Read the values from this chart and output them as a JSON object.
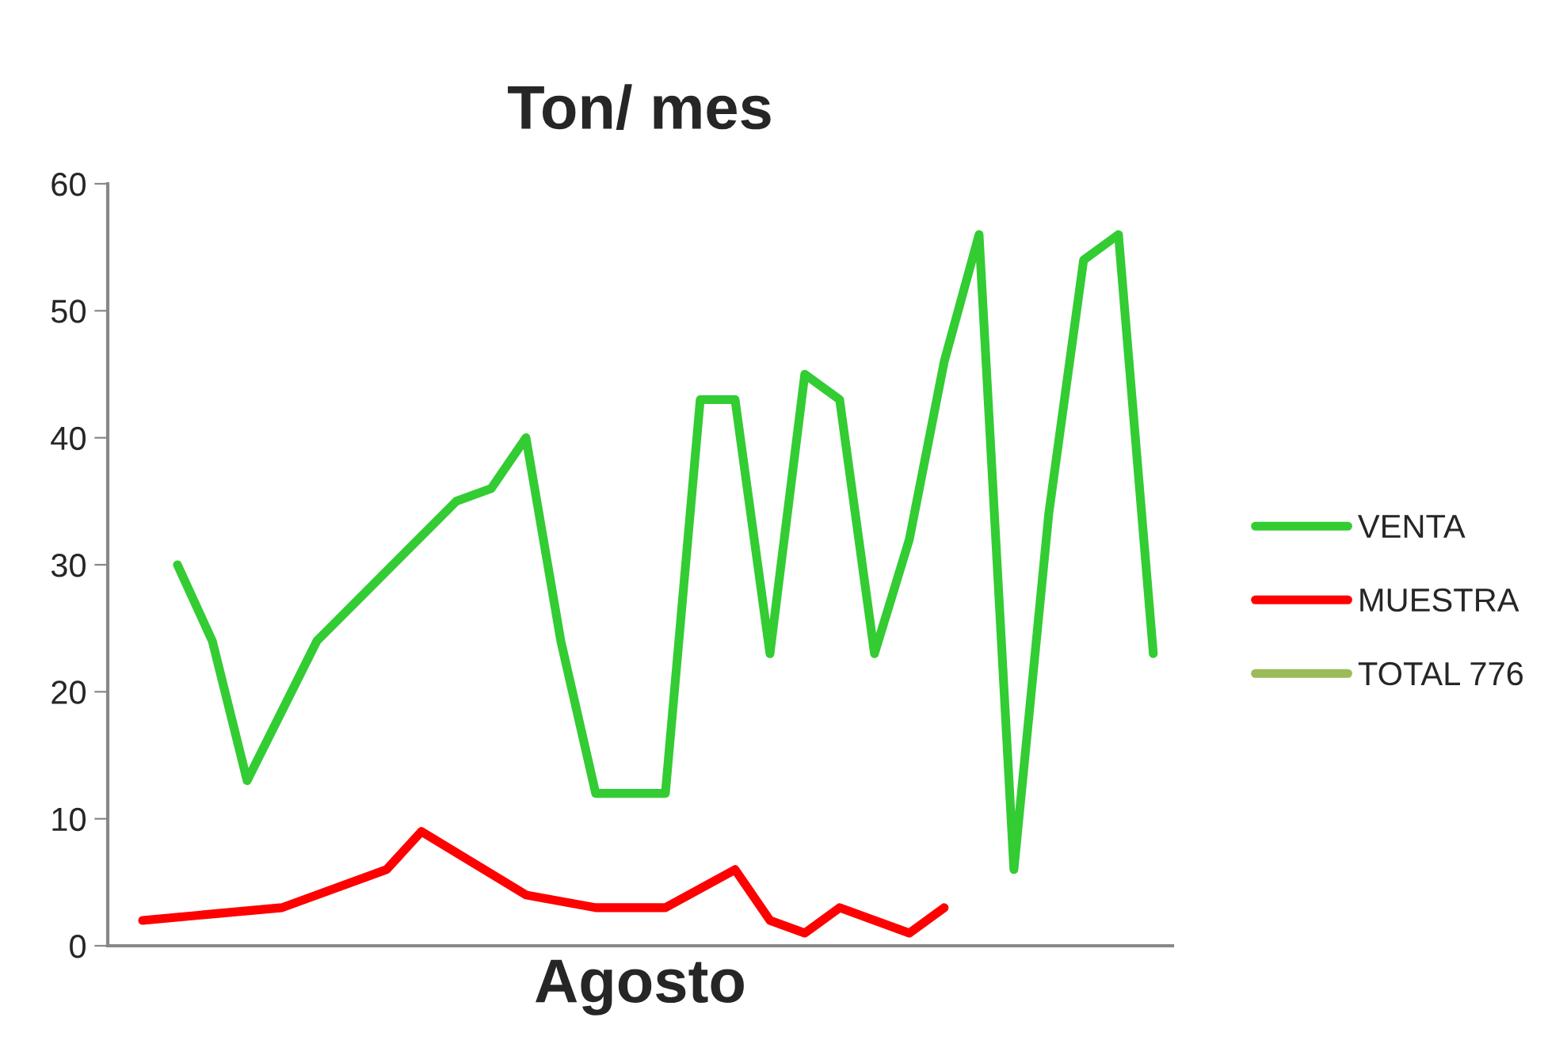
{
  "chart_data": {
    "type": "line",
    "title": "Ton/ mes",
    "xlabel": "Agosto",
    "categories": [
      null,
      null,
      null,
      null,
      null,
      null,
      null,
      null,
      null,
      null,
      null,
      null,
      null,
      null,
      null,
      null,
      null,
      null,
      null,
      null,
      null,
      null,
      null,
      null,
      null,
      null,
      null,
      null,
      null,
      null
    ],
    "series": [
      {
        "name": "VENTA",
        "color": "#33cc33",
        "values": [
          null,
          30,
          24,
          13,
          null,
          24,
          null,
          null,
          null,
          35,
          36,
          40,
          24,
          12,
          12,
          12,
          43,
          43,
          23,
          45,
          43,
          23,
          32,
          46,
          56,
          6,
          34,
          54,
          56,
          23
        ]
      },
      {
        "name": "MUESTRA",
        "color": "#ff0000",
        "values": [
          2,
          null,
          null,
          null,
          3,
          null,
          null,
          6,
          9,
          null,
          null,
          4,
          null,
          3,
          null,
          3,
          null,
          6,
          2,
          1,
          3,
          null,
          1,
          3,
          null,
          null,
          null,
          null,
          null,
          null
        ]
      },
      {
        "name": "TOTAL 776",
        "color": "#9bbb59",
        "values": [
          null,
          null,
          null,
          null,
          null,
          null,
          null,
          null,
          null,
          null,
          null,
          null,
          null,
          null,
          null,
          null,
          null,
          null,
          null,
          null,
          null,
          null,
          null,
          null,
          null,
          null,
          null,
          null,
          null,
          null
        ]
      }
    ],
    "ylim": [
      0,
      60
    ],
    "yticks": [
      0,
      10,
      20,
      30,
      40,
      50,
      60
    ],
    "grid": false,
    "legend": "right"
  }
}
